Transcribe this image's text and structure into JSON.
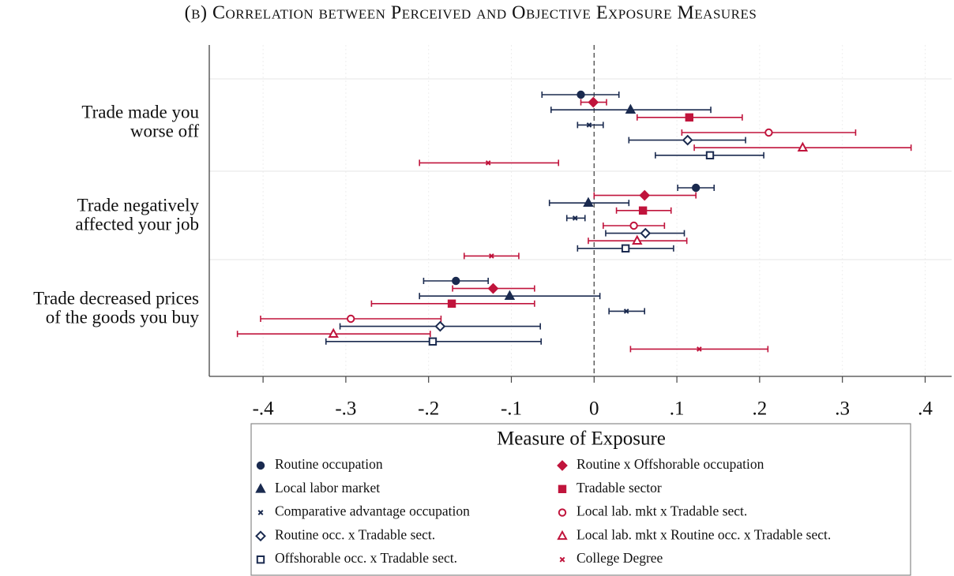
{
  "chart_data": {
    "type": "coefplot",
    "title": "(b) Correlation between Perceived and Objective Exposure Measures",
    "categories": [
      [
        "Trade made you",
        "worse off"
      ],
      [
        "Trade negatively",
        "affected your job"
      ],
      [
        "Trade decreased prices",
        "of the goods you buy"
      ]
    ],
    "xlim": [
      -0.465,
      0.432
    ],
    "xticks": [
      {
        "value": -0.4,
        "label": "-.4"
      },
      {
        "value": -0.3,
        "label": "-.3"
      },
      {
        "value": -0.2,
        "label": "-.2"
      },
      {
        "value": -0.1,
        "label": "-.1"
      },
      0,
      {
        "value": 0.1,
        "label": ".1"
      },
      {
        "value": 0.2,
        "label": ".2"
      },
      {
        "value": 0.3,
        "label": ".3"
      },
      {
        "value": 0.4,
        "label": ".4"
      }
    ],
    "reference_line": 0,
    "grid": true,
    "legend_title": "Measure of Exposure",
    "legend_position": "bottom",
    "series": [
      {
        "name": "Routine occupation",
        "color": "#1a2a4f",
        "marker": "circle",
        "filled": true,
        "values": [
          -0.016,
          0.123,
          -0.167
        ],
        "lower": [
          -0.063,
          0.101,
          -0.206
        ],
        "upper": [
          0.03,
          0.145,
          -0.128
        ]
      },
      {
        "name": "Routine x Offshorable occupation",
        "color": "#c0143c",
        "marker": "diamond",
        "filled": true,
        "values": [
          -0.001,
          0.061,
          -0.122
        ],
        "lower": [
          -0.016,
          0.0,
          -0.171
        ],
        "upper": [
          0.015,
          0.123,
          -0.072
        ]
      },
      {
        "name": "Local labor market",
        "color": "#1a2a4f",
        "marker": "triangle",
        "filled": true,
        "values": [
          0.044,
          -0.007,
          -0.102
        ],
        "lower": [
          -0.052,
          -0.054,
          -0.211
        ],
        "upper": [
          0.141,
          0.042,
          0.007
        ]
      },
      {
        "name": "Tradable sector",
        "color": "#c0143c",
        "marker": "square",
        "filled": true,
        "values": [
          0.115,
          0.059,
          -0.172
        ],
        "lower": [
          0.052,
          0.027,
          -0.269
        ],
        "upper": [
          0.179,
          0.093,
          -0.072
        ]
      },
      {
        "name": "Comparative advantage occupation",
        "color": "#1a2a4f",
        "marker": "x",
        "filled": true,
        "values": [
          -0.006,
          -0.023,
          0.039
        ],
        "lower": [
          -0.02,
          -0.033,
          0.018
        ],
        "upper": [
          0.011,
          -0.011,
          0.061
        ]
      },
      {
        "name": "Local lab. mkt x Tradable sect.",
        "color": "#c0143c",
        "marker": "circle",
        "filled": false,
        "values": [
          0.211,
          0.048,
          -0.294
        ],
        "lower": [
          0.106,
          0.011,
          -0.403
        ],
        "upper": [
          0.316,
          0.085,
          -0.185
        ]
      },
      {
        "name": "Routine occ. x Tradable sect.",
        "color": "#1a2a4f",
        "marker": "diamond",
        "filled": false,
        "values": [
          0.113,
          0.062,
          -0.186
        ],
        "lower": [
          0.042,
          0.014,
          -0.307
        ],
        "upper": [
          0.183,
          0.109,
          -0.065
        ]
      },
      {
        "name": "Local lab. mkt x Routine occ. x Tradable sect.",
        "color": "#c0143c",
        "marker": "triangle",
        "filled": false,
        "values": [
          0.252,
          0.052,
          -0.315
        ],
        "lower": [
          0.121,
          -0.007,
          -0.431
        ],
        "upper": [
          0.383,
          0.112,
          -0.198
        ]
      },
      {
        "name": "Offshorable occ. x Tradable sect.",
        "color": "#1a2a4f",
        "marker": "square",
        "filled": false,
        "values": [
          0.14,
          0.038,
          -0.195
        ],
        "lower": [
          0.074,
          -0.02,
          -0.324
        ],
        "upper": [
          0.205,
          0.096,
          -0.064
        ]
      },
      {
        "name": "College Degree",
        "color": "#c0143c",
        "marker": "x",
        "filled": true,
        "values": [
          -0.128,
          -0.124,
          0.127
        ],
        "lower": [
          -0.211,
          -0.157,
          0.044
        ],
        "upper": [
          -0.043,
          -0.091,
          0.21
        ]
      }
    ]
  }
}
